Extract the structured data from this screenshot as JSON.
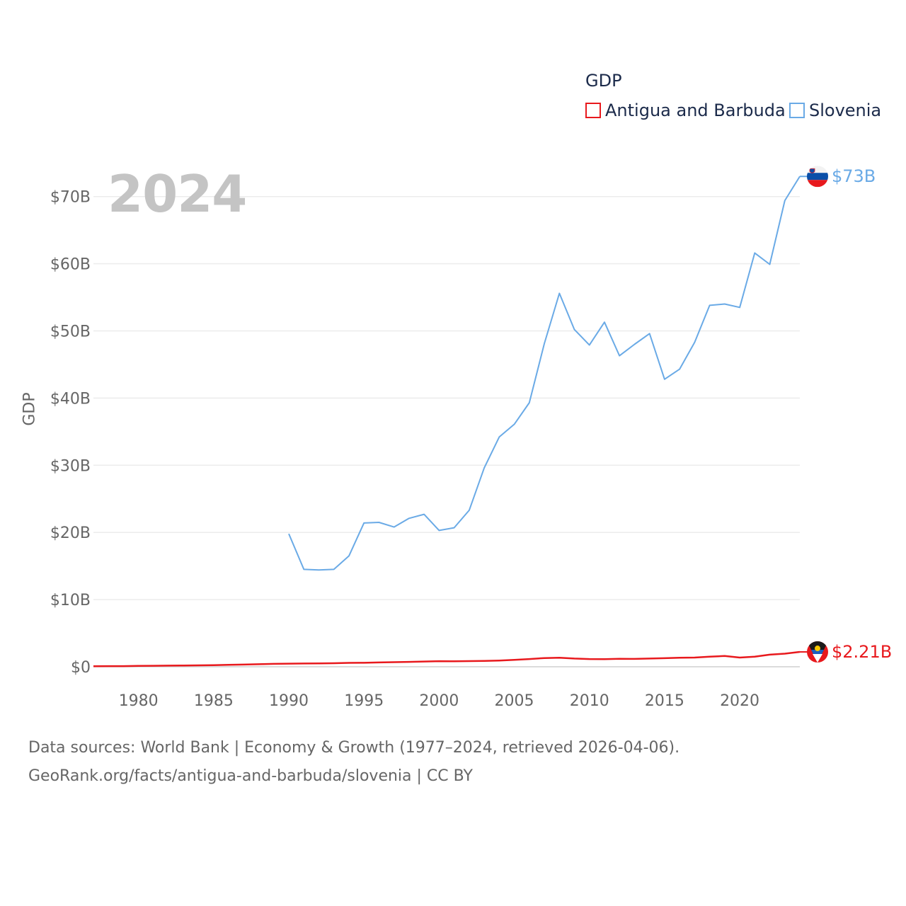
{
  "legend": {
    "title": "GDP",
    "items": [
      {
        "name": "Antigua and Barbuda",
        "color": "#e8191d"
      },
      {
        "name": "Slovenia",
        "color": "#6aaae6"
      }
    ]
  },
  "year_label": "2024",
  "source": {
    "line1": "Data sources: World Bank | Economy & Growth (1977–2024, retrieved 2026-04-06).",
    "line2": "GeoRank.org/facts/antigua-and-barbuda/slovenia | CC BY"
  },
  "chart_data": {
    "type": "line",
    "title": "",
    "xlabel": "",
    "ylabel": "GDP",
    "xlim": [
      1977,
      2024
    ],
    "ylim": [
      0,
      70
    ],
    "yunit": "billion USD",
    "x_ticks": [
      1980,
      1985,
      1990,
      1995,
      2000,
      2005,
      2010,
      2015,
      2020
    ],
    "y_ticks": [
      0,
      10,
      20,
      30,
      40,
      50,
      60,
      70
    ],
    "y_tick_labels": [
      "$0",
      "$10B",
      "$20B",
      "$30B",
      "$40B",
      "$50B",
      "$60B",
      "$70B"
    ],
    "series": [
      {
        "name": "Antigua and Barbuda",
        "color": "#e8191d",
        "end_label": "$2.21B",
        "flag_icon": "antigua-and-barbuda-flag-icon",
        "x": [
          1977,
          1978,
          1979,
          1980,
          1981,
          1982,
          1983,
          1984,
          1985,
          1986,
          1987,
          1988,
          1989,
          1990,
          1991,
          1992,
          1993,
          1994,
          1995,
          1996,
          1997,
          1998,
          1999,
          2000,
          2001,
          2002,
          2003,
          2004,
          2005,
          2006,
          2007,
          2008,
          2009,
          2010,
          2011,
          2012,
          2013,
          2014,
          2015,
          2016,
          2017,
          2018,
          2019,
          2020,
          2021,
          2022,
          2023,
          2024
        ],
        "values": [
          0.08,
          0.09,
          0.1,
          0.13,
          0.15,
          0.17,
          0.19,
          0.21,
          0.24,
          0.28,
          0.33,
          0.38,
          0.43,
          0.46,
          0.48,
          0.5,
          0.53,
          0.58,
          0.59,
          0.64,
          0.68,
          0.73,
          0.78,
          0.83,
          0.81,
          0.84,
          0.87,
          0.93,
          1.02,
          1.15,
          1.3,
          1.35,
          1.22,
          1.15,
          1.13,
          1.19,
          1.17,
          1.22,
          1.28,
          1.34,
          1.37,
          1.5,
          1.6,
          1.37,
          1.5,
          1.8,
          1.95,
          2.21
        ]
      },
      {
        "name": "Slovenia",
        "color": "#6aaae6",
        "end_label": "$73B",
        "flag_icon": "slovenia-flag-icon",
        "x": [
          1990,
          1991,
          1992,
          1993,
          1994,
          1995,
          1996,
          1997,
          1998,
          1999,
          2000,
          2001,
          2002,
          2003,
          2004,
          2005,
          2006,
          2007,
          2008,
          2009,
          2010,
          2011,
          2012,
          2013,
          2014,
          2015,
          2016,
          2017,
          2018,
          2019,
          2020,
          2021,
          2022,
          2023,
          2024
        ],
        "values": [
          19.8,
          14.5,
          14.4,
          14.5,
          16.5,
          21.4,
          21.5,
          20.8,
          22.1,
          22.7,
          20.3,
          20.7,
          23.3,
          29.6,
          34.2,
          36.1,
          39.3,
          48.1,
          55.6,
          50.2,
          47.9,
          51.3,
          46.3,
          48.0,
          49.6,
          42.8,
          44.3,
          48.3,
          53.8,
          54.0,
          53.5,
          61.6,
          59.9,
          69.4,
          73.0
        ]
      }
    ]
  }
}
